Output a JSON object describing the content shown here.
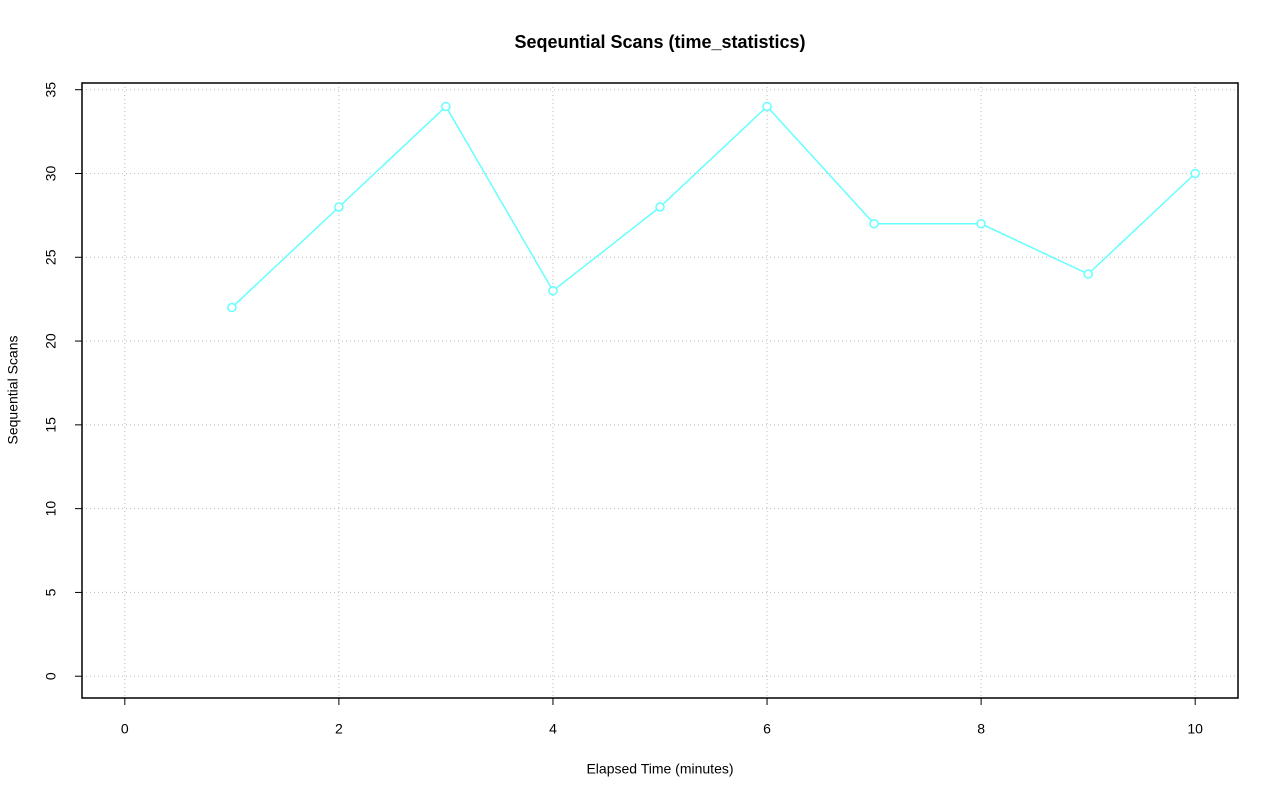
{
  "chart_data": {
    "type": "line",
    "title": "Seqeuntial Scans (time_statistics)",
    "x_label": "Elapsed Time (minutes)",
    "y_label": "Sequential Scans",
    "x": [
      1,
      2,
      3,
      4,
      5,
      6,
      7,
      8,
      9,
      10
    ],
    "series": [
      {
        "name": "Sequential Scans",
        "color": "#66ffff",
        "values": [
          22,
          28,
          34,
          23,
          28,
          34,
          27,
          27,
          24,
          30
        ]
      }
    ],
    "xlim": [
      -0.4,
      10.4
    ],
    "ylim": [
      -1.3,
      35.4
    ],
    "xticks": [
      0,
      2,
      4,
      6,
      8,
      10
    ],
    "yticks": [
      0,
      5,
      10,
      15,
      20,
      25,
      30,
      35
    ],
    "grid": true
  }
}
